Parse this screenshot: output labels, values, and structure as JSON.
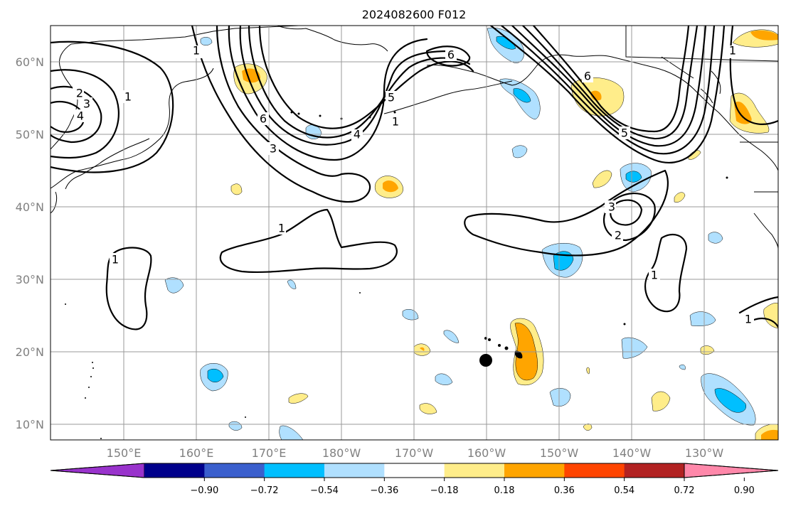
{
  "title": "2024082600 F012",
  "lat_labels": [
    "60°N",
    "50°N",
    "40°N",
    "30°N",
    "20°N",
    "10°N"
  ],
  "lon_labels": [
    "150°E",
    "160°E",
    "170°E",
    "180°W",
    "170°W",
    "160°W",
    "150°W",
    "140°W",
    "130°W"
  ],
  "colorbar": {
    "ticks": [
      "−0.90",
      "−0.72",
      "−0.54",
      "−0.36",
      "−0.18",
      "0.18",
      "0.36",
      "0.54",
      "0.72",
      "0.90"
    ],
    "colors": [
      "#9933cc",
      "#00008b",
      "#3a5fcd",
      "#00bfff",
      "#b0e0ff",
      "#ffffff",
      "#ffed8a",
      "#ffa500",
      "#ff4500",
      "#b22222",
      "#ff88aa"
    ]
  },
  "contour_labels": {
    "c1a": "1",
    "c2a": "2",
    "c3a": "3",
    "c4a": "4",
    "c1b": "1",
    "c1c": "1",
    "c1d": "1",
    "c1e": "1",
    "c1f": "1",
    "c6a": "6",
    "c3b": "3",
    "c4b": "4",
    "c5a": "5",
    "c6b": "6",
    "c5b": "5",
    "c6c": "6",
    "c3c": "3",
    "c2c": "2",
    "c1g": "1",
    "c1h": "1"
  },
  "marker": "storm-position-dot"
}
